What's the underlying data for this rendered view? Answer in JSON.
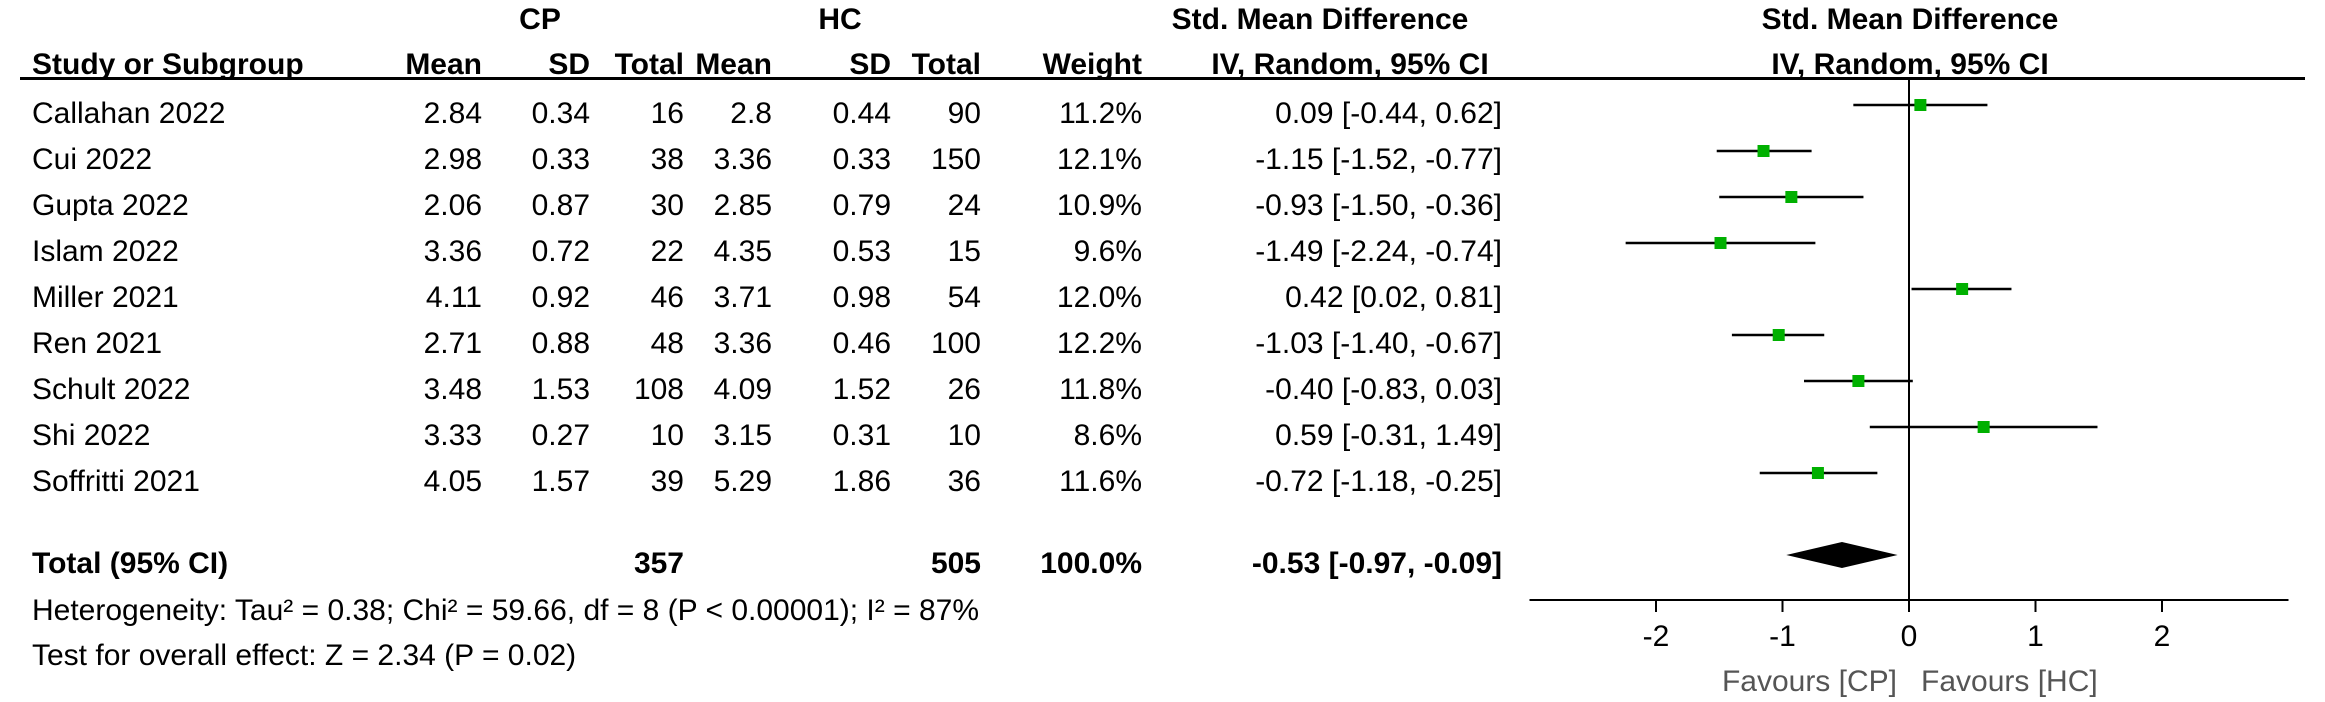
{
  "headers": {
    "cp_group": "CP",
    "hc_group": "HC",
    "smd_group": "Std. Mean Difference",
    "smd_sub": "IV, Random, 95% CI",
    "plot_group": "Std. Mean Difference",
    "plot_sub": "IV, Random, 95% CI",
    "study": "Study or Subgroup",
    "mean1": "Mean",
    "sd1": "SD",
    "total1": "Total",
    "mean2": "Mean",
    "sd2": "SD",
    "total2": "Total",
    "weight": "Weight"
  },
  "studies": [
    {
      "name": "Callahan 2022",
      "m1": "2.84",
      "sd1": "0.34",
      "n1": "16",
      "m2": "2.8",
      "sd2": "0.44",
      "n2": "90",
      "w": "11.2%",
      "ci": "0.09 [-0.44, 0.62]"
    },
    {
      "name": "Cui 2022",
      "m1": "2.98",
      "sd1": "0.33",
      "n1": "38",
      "m2": "3.36",
      "sd2": "0.33",
      "n2": "150",
      "w": "12.1%",
      "ci": "-1.15 [-1.52, -0.77]"
    },
    {
      "name": "Gupta 2022",
      "m1": "2.06",
      "sd1": "0.87",
      "n1": "30",
      "m2": "2.85",
      "sd2": "0.79",
      "n2": "24",
      "w": "10.9%",
      "ci": "-0.93 [-1.50, -0.36]"
    },
    {
      "name": "Islam 2022",
      "m1": "3.36",
      "sd1": "0.72",
      "n1": "22",
      "m2": "4.35",
      "sd2": "0.53",
      "n2": "15",
      "w": "9.6%",
      "ci": "-1.49 [-2.24, -0.74]"
    },
    {
      "name": "Miller 2021",
      "m1": "4.11",
      "sd1": "0.92",
      "n1": "46",
      "m2": "3.71",
      "sd2": "0.98",
      "n2": "54",
      "w": "12.0%",
      "ci": "0.42 [0.02, 0.81]"
    },
    {
      "name": "Ren 2021",
      "m1": "2.71",
      "sd1": "0.88",
      "n1": "48",
      "m2": "3.36",
      "sd2": "0.46",
      "n2": "100",
      "w": "12.2%",
      "ci": "-1.03 [-1.40, -0.67]"
    },
    {
      "name": "Schult 2022",
      "m1": "3.48",
      "sd1": "1.53",
      "n1": "108",
      "m2": "4.09",
      "sd2": "1.52",
      "n2": "26",
      "w": "11.8%",
      "ci": "-0.40 [-0.83, 0.03]"
    },
    {
      "name": "Shi 2022",
      "m1": "3.33",
      "sd1": "0.27",
      "n1": "10",
      "m2": "3.15",
      "sd2": "0.31",
      "n2": "10",
      "w": "8.6%",
      "ci": "0.59 [-0.31, 1.49]"
    },
    {
      "name": "Soffritti 2021",
      "m1": "4.05",
      "sd1": "1.57",
      "n1": "39",
      "m2": "5.29",
      "sd2": "1.86",
      "n2": "36",
      "w": "11.6%",
      "ci": "-0.72 [-1.18, -0.25]"
    }
  ],
  "total": {
    "label": "Total (95% CI)",
    "n1": "357",
    "n2": "505",
    "w": "100.0%",
    "ci": "-0.53 [-0.97, -0.09]"
  },
  "heterogeneity": "Heterogeneity: Tau² = 0.38; Chi² = 59.66, df = 8 (P < 0.00001); I² = 87%",
  "overall_effect": "Test for overall effect: Z = 2.34 (P = 0.02)",
  "chart_data": {
    "type": "forest",
    "xlim": [
      -3,
      3
    ],
    "ticks": [
      -2,
      -1,
      0,
      1,
      2
    ],
    "tick_labels": [
      "-2",
      "-1",
      "0",
      "1",
      "2"
    ],
    "xlabel_left": "Favours [CP]",
    "xlabel_right": "Favours [HC]",
    "marker_color": "#00b000",
    "diamond_color": "#000000",
    "estimates": [
      {
        "est": 0.09,
        "lo": -0.44,
        "hi": 0.62
      },
      {
        "est": -1.15,
        "lo": -1.52,
        "hi": -0.77
      },
      {
        "est": -0.93,
        "lo": -1.5,
        "hi": -0.36
      },
      {
        "est": -1.49,
        "lo": -2.24,
        "hi": -0.74
      },
      {
        "est": 0.42,
        "lo": 0.02,
        "hi": 0.81
      },
      {
        "est": -1.03,
        "lo": -1.4,
        "hi": -0.67
      },
      {
        "est": -0.4,
        "lo": -0.83,
        "hi": 0.03
      },
      {
        "est": 0.59,
        "lo": -0.31,
        "hi": 1.49
      },
      {
        "est": -0.72,
        "lo": -1.18,
        "hi": -0.25
      }
    ],
    "pooled": {
      "est": -0.53,
      "lo": -0.97,
      "hi": -0.09
    }
  }
}
